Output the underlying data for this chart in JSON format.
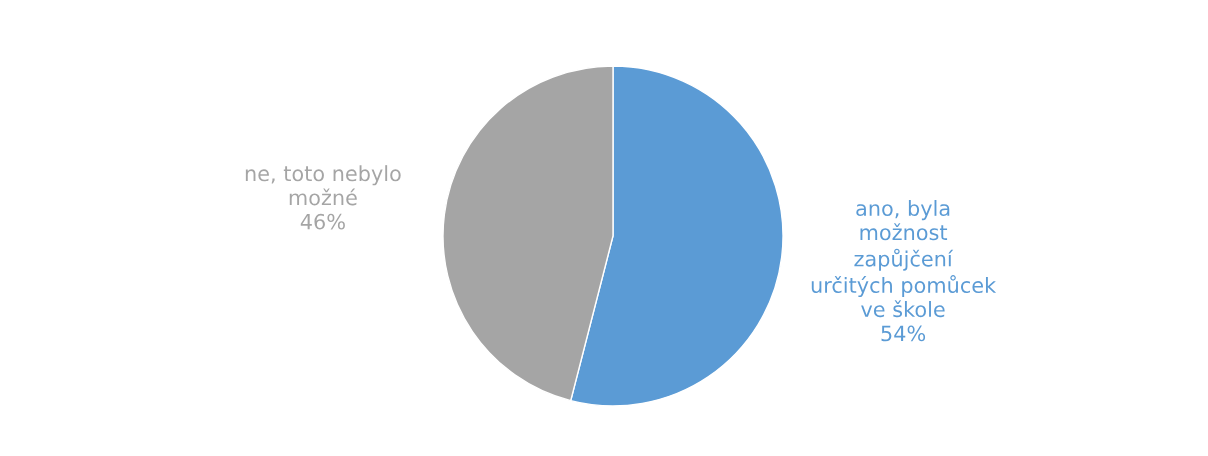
{
  "chart_data": {
    "type": "pie",
    "categories": [
      "ano, byla\nmožnost\nzapůjčení\nurčitých pomůcek\nve škole",
      "ne, toto nebylo\nmožné"
    ],
    "values": [
      54,
      46
    ],
    "colors": [
      "#5b9bd5",
      "#a5a5a5"
    ],
    "value_labels": [
      "54%",
      "46%"
    ]
  }
}
